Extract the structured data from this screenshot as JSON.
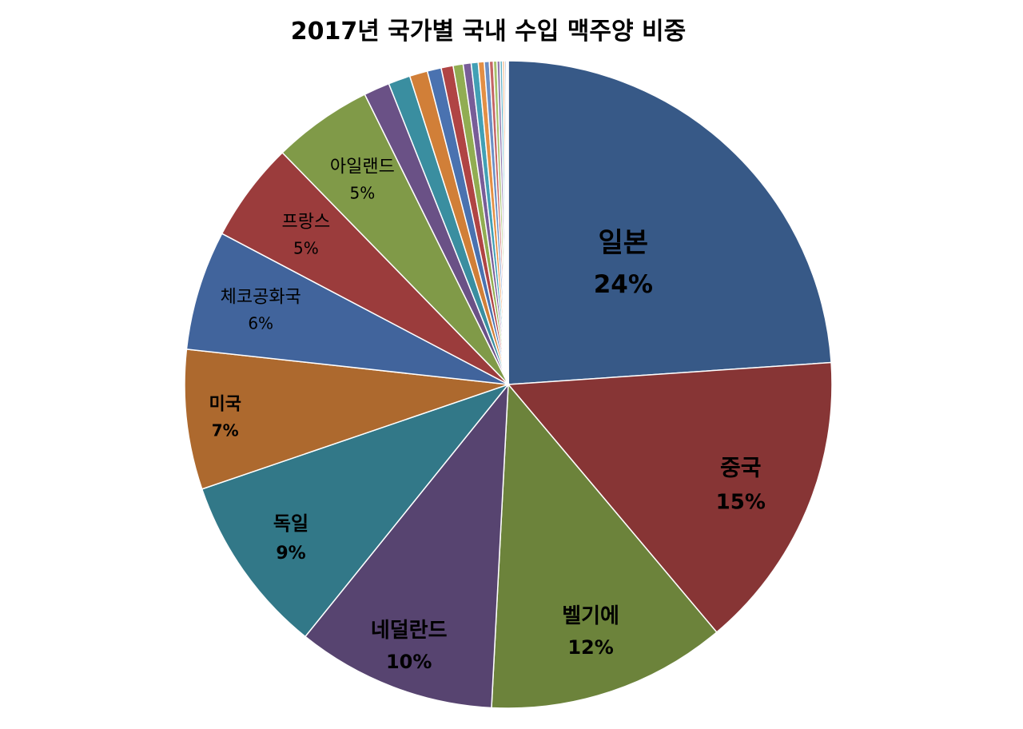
{
  "chart_data": {
    "type": "pie",
    "title": "2017년 국가별 국내 수입 맥주양 비중",
    "slices": [
      {
        "label": "일본",
        "value": 24,
        "value_label": "24%",
        "color": "#375987"
      },
      {
        "label": "중국",
        "value": 15,
        "value_label": "15%",
        "color": "#873535"
      },
      {
        "label": "벨기에",
        "value": 12,
        "value_label": "12%",
        "color": "#6c833b"
      },
      {
        "label": "네덜란드",
        "value": 10,
        "value_label": "10%",
        "color": "#574470"
      },
      {
        "label": "독일",
        "value": 9,
        "value_label": "9%",
        "color": "#327888"
      },
      {
        "label": "미국",
        "value": 7,
        "value_label": "7%",
        "color": "#ad692e"
      },
      {
        "label": "체코공화국",
        "value": 6,
        "value_label": "6%",
        "color": "#41649c"
      },
      {
        "label": "프랑스",
        "value": 5,
        "value_label": "5%",
        "color": "#9b3c3c"
      },
      {
        "label": "아일랜드",
        "value": 5,
        "value_label": "5%",
        "color": "#809a48"
      },
      {
        "label": "",
        "value": 1.3,
        "color": "#6a5186"
      },
      {
        "label": "",
        "value": 1.1,
        "color": "#3a8ea0"
      },
      {
        "label": "",
        "value": 0.9,
        "color": "#d17f38"
      },
      {
        "label": "",
        "value": 0.7,
        "color": "#4a72b0"
      },
      {
        "label": "",
        "value": 0.6,
        "color": "#b04444"
      },
      {
        "label": "",
        "value": 0.5,
        "color": "#91ad52"
      },
      {
        "label": "",
        "value": 0.4,
        "color": "#785d98"
      },
      {
        "label": "",
        "value": 0.35,
        "color": "#42a0b5"
      },
      {
        "label": "",
        "value": 0.3,
        "color": "#e38f45"
      },
      {
        "label": "",
        "value": 0.25,
        "color": "#6b8fc4"
      },
      {
        "label": "",
        "value": 0.2,
        "color": "#c46464"
      },
      {
        "label": "",
        "value": 0.18,
        "color": "#a6c06c"
      },
      {
        "label": "",
        "value": 0.15,
        "color": "#9079ae"
      },
      {
        "label": "",
        "value": 0.12,
        "color": "#62b3c6"
      },
      {
        "label": "",
        "value": 0.1,
        "color": "#eba56a"
      },
      {
        "label": "",
        "value": 0.08,
        "color": "#8faad3"
      },
      {
        "label": "",
        "value": 0.06,
        "color": "#d38888"
      },
      {
        "label": "",
        "value": 0.05,
        "color": "#bfd28f"
      }
    ]
  }
}
